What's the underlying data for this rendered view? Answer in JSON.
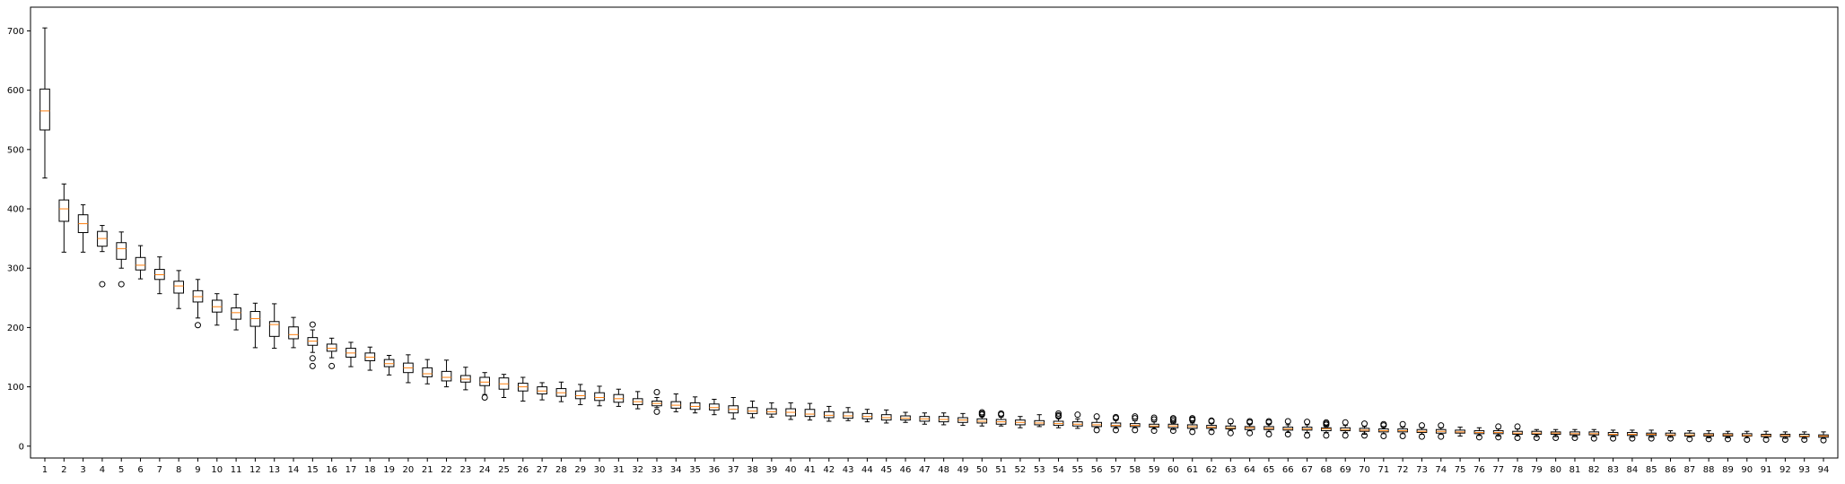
{
  "chart_data": {
    "type": "box",
    "title": "",
    "xlabel": "",
    "ylabel": "",
    "ylim": [
      -20,
      740
    ],
    "yticks": [
      0,
      100,
      200,
      300,
      400,
      500,
      600,
      700
    ],
    "grid": false,
    "colors": {
      "box": "#000000",
      "median": "#ff7f0e",
      "flier": "#000000",
      "background": "#ffffff"
    },
    "categories": [
      "1",
      "2",
      "3",
      "4",
      "5",
      "6",
      "7",
      "8",
      "9",
      "10",
      "11",
      "12",
      "13",
      "14",
      "15",
      "16",
      "17",
      "18",
      "19",
      "20",
      "21",
      "22",
      "23",
      "24",
      "25",
      "26",
      "27",
      "28",
      "29",
      "30",
      "31",
      "32",
      "33",
      "34",
      "35",
      "36",
      "37",
      "38",
      "39",
      "40",
      "41",
      "42",
      "43",
      "44",
      "45",
      "46",
      "47",
      "48",
      "49",
      "50",
      "51",
      "52",
      "53",
      "54",
      "55",
      "56",
      "57",
      "58",
      "59",
      "60",
      "61",
      "62",
      "63",
      "64",
      "65",
      "66",
      "67",
      "68",
      "69",
      "70",
      "71",
      "72",
      "73",
      "74",
      "75",
      "76",
      "77",
      "78",
      "79",
      "80",
      "81",
      "82",
      "83",
      "84",
      "85",
      "86",
      "87",
      "88",
      "89",
      "90",
      "91",
      "92",
      "93",
      "94"
    ],
    "boxes": [
      {
        "min": 452,
        "q1": 533,
        "median": 565,
        "q3": 602,
        "max": 705,
        "fliers": []
      },
      {
        "min": 327,
        "q1": 379,
        "median": 400,
        "q3": 415,
        "max": 442,
        "fliers": []
      },
      {
        "min": 327,
        "q1": 360,
        "median": 375,
        "q3": 390,
        "max": 407,
        "fliers": []
      },
      {
        "min": 328,
        "q1": 337,
        "median": 350,
        "q3": 362,
        "max": 372,
        "fliers": [
          273
        ]
      },
      {
        "min": 300,
        "q1": 315,
        "median": 333,
        "q3": 343,
        "max": 361,
        "fliers": [
          273
        ]
      },
      {
        "min": 282,
        "q1": 297,
        "median": 305,
        "q3": 318,
        "max": 338,
        "fliers": []
      },
      {
        "min": 257,
        "q1": 281,
        "median": 289,
        "q3": 298,
        "max": 319,
        "fliers": []
      },
      {
        "min": 232,
        "q1": 258,
        "median": 270,
        "q3": 278,
        "max": 296,
        "fliers": []
      },
      {
        "min": 216,
        "q1": 243,
        "median": 252,
        "q3": 262,
        "max": 281,
        "fliers": [
          204
        ]
      },
      {
        "min": 204,
        "q1": 226,
        "median": 235,
        "q3": 246,
        "max": 257,
        "fliers": []
      },
      {
        "min": 196,
        "q1": 214,
        "median": 225,
        "q3": 233,
        "max": 256,
        "fliers": []
      },
      {
        "min": 166,
        "q1": 202,
        "median": 215,
        "q3": 227,
        "max": 241,
        "fliers": []
      },
      {
        "min": 165,
        "q1": 185,
        "median": 205,
        "q3": 210,
        "max": 240,
        "fliers": []
      },
      {
        "min": 166,
        "q1": 181,
        "median": 188,
        "q3": 201,
        "max": 217,
        "fliers": []
      },
      {
        "min": 158,
        "q1": 170,
        "median": 177,
        "q3": 183,
        "max": 196,
        "fliers": [
          205,
          148,
          135
        ]
      },
      {
        "min": 149,
        "q1": 160,
        "median": 165,
        "q3": 172,
        "max": 182,
        "fliers": [
          135
        ]
      },
      {
        "min": 134,
        "q1": 150,
        "median": 157,
        "q3": 165,
        "max": 175,
        "fliers": []
      },
      {
        "min": 128,
        "q1": 144,
        "median": 150,
        "q3": 157,
        "max": 167,
        "fliers": []
      },
      {
        "min": 120,
        "q1": 134,
        "median": 139,
        "q3": 146,
        "max": 153,
        "fliers": []
      },
      {
        "min": 107,
        "q1": 124,
        "median": 132,
        "q3": 140,
        "max": 154,
        "fliers": []
      },
      {
        "min": 105,
        "q1": 117,
        "median": 122,
        "q3": 132,
        "max": 146,
        "fliers": []
      },
      {
        "min": 100,
        "q1": 110,
        "median": 116,
        "q3": 126,
        "max": 145,
        "fliers": []
      },
      {
        "min": 95,
        "q1": 108,
        "median": 113,
        "q3": 119,
        "max": 133,
        "fliers": []
      },
      {
        "min": 87,
        "q1": 102,
        "median": 108,
        "q3": 116,
        "max": 124,
        "fliers": [
          82
        ]
      },
      {
        "min": 82,
        "q1": 96,
        "median": 105,
        "q3": 115,
        "max": 121,
        "fliers": []
      },
      {
        "min": 76,
        "q1": 93,
        "median": 100,
        "q3": 106,
        "max": 116,
        "fliers": []
      },
      {
        "min": 78,
        "q1": 88,
        "median": 93,
        "q3": 100,
        "max": 107,
        "fliers": []
      },
      {
        "min": 75,
        "q1": 84,
        "median": 90,
        "q3": 97,
        "max": 108,
        "fliers": []
      },
      {
        "min": 70,
        "q1": 80,
        "median": 85,
        "q3": 93,
        "max": 104,
        "fliers": []
      },
      {
        "min": 68,
        "q1": 77,
        "median": 82,
        "q3": 90,
        "max": 101,
        "fliers": []
      },
      {
        "min": 67,
        "q1": 74,
        "median": 80,
        "q3": 87,
        "max": 96,
        "fliers": []
      },
      {
        "min": 63,
        "q1": 70,
        "median": 75,
        "q3": 80,
        "max": 92,
        "fliers": []
      },
      {
        "min": 65,
        "q1": 68,
        "median": 72,
        "q3": 76,
        "max": 82,
        "fliers": [
          91,
          58
        ]
      },
      {
        "min": 58,
        "q1": 64,
        "median": 69,
        "q3": 75,
        "max": 88,
        "fliers": []
      },
      {
        "min": 56,
        "q1": 62,
        "median": 67,
        "q3": 73,
        "max": 83,
        "fliers": []
      },
      {
        "min": 53,
        "q1": 61,
        "median": 65,
        "q3": 71,
        "max": 79,
        "fliers": []
      },
      {
        "min": 46,
        "q1": 56,
        "median": 62,
        "q3": 68,
        "max": 82,
        "fliers": []
      },
      {
        "min": 48,
        "q1": 55,
        "median": 59,
        "q3": 65,
        "max": 76,
        "fliers": []
      },
      {
        "min": 49,
        "q1": 54,
        "median": 58,
        "q3": 63,
        "max": 73,
        "fliers": []
      },
      {
        "min": 45,
        "q1": 51,
        "median": 57,
        "q3": 63,
        "max": 73,
        "fliers": []
      },
      {
        "min": 44,
        "q1": 50,
        "median": 54,
        "q3": 62,
        "max": 72,
        "fliers": []
      },
      {
        "min": 42,
        "q1": 48,
        "median": 52,
        "q3": 58,
        "max": 67,
        "fliers": []
      },
      {
        "min": 43,
        "q1": 47,
        "median": 51,
        "q3": 57,
        "max": 65,
        "fliers": []
      },
      {
        "min": 41,
        "q1": 46,
        "median": 50,
        "q3": 55,
        "max": 62,
        "fliers": []
      },
      {
        "min": 39,
        "q1": 44,
        "median": 48,
        "q3": 53,
        "max": 61,
        "fliers": []
      },
      {
        "min": 40,
        "q1": 44,
        "median": 47,
        "q3": 51,
        "max": 57,
        "fliers": []
      },
      {
        "min": 37,
        "q1": 42,
        "median": 46,
        "q3": 50,
        "max": 56,
        "fliers": []
      },
      {
        "min": 36,
        "q1": 41,
        "median": 45,
        "q3": 50,
        "max": 56,
        "fliers": []
      },
      {
        "min": 35,
        "q1": 40,
        "median": 44,
        "q3": 48,
        "max": 55,
        "fliers": []
      },
      {
        "min": 34,
        "q1": 39,
        "median": 42,
        "q3": 46,
        "max": 50,
        "fliers": [
          55,
          57,
          53
        ]
      },
      {
        "min": 34,
        "q1": 37,
        "median": 41,
        "q3": 45,
        "max": 49,
        "fliers": [
          55,
          53
        ]
      },
      {
        "min": 31,
        "q1": 36,
        "median": 40,
        "q3": 44,
        "max": 50,
        "fliers": []
      },
      {
        "min": 33,
        "q1": 36,
        "median": 39,
        "q3": 43,
        "max": 53,
        "fliers": []
      },
      {
        "min": 31,
        "q1": 35,
        "median": 38,
        "q3": 42,
        "max": 47,
        "fliers": [
          55,
          52,
          50
        ]
      },
      {
        "min": 30,
        "q1": 34,
        "median": 37,
        "q3": 41,
        "max": 46,
        "fliers": [
          53
        ]
      },
      {
        "min": 31,
        "q1": 33,
        "median": 36,
        "q3": 40,
        "max": 46,
        "fliers": [
          50,
          27
        ]
      },
      {
        "min": 30,
        "q1": 33,
        "median": 35,
        "q3": 39,
        "max": 44,
        "fliers": [
          49,
          47,
          27
        ]
      },
      {
        "min": 31,
        "q1": 33,
        "median": 35,
        "q3": 38,
        "max": 43,
        "fliers": [
          50,
          47,
          27
        ]
      },
      {
        "min": 29,
        "q1": 32,
        "median": 34,
        "q3": 37,
        "max": 41,
        "fliers": [
          48,
          45,
          26
        ]
      },
      {
        "min": 28,
        "q1": 31,
        "median": 34,
        "q3": 37,
        "max": 40,
        "fliers": [
          47,
          45,
          42,
          26
        ]
      },
      {
        "min": 28,
        "q1": 30,
        "median": 33,
        "q3": 36,
        "max": 39,
        "fliers": [
          47,
          45,
          44,
          24
        ]
      },
      {
        "min": 27,
        "q1": 30,
        "median": 32,
        "q3": 35,
        "max": 38,
        "fliers": [
          43,
          42,
          24
        ]
      },
      {
        "min": 27,
        "q1": 29,
        "median": 31,
        "q3": 34,
        "max": 38,
        "fliers": [
          42,
          22
        ]
      },
      {
        "min": 26,
        "q1": 28,
        "median": 31,
        "q3": 33,
        "max": 37,
        "fliers": [
          42,
          40,
          22
        ]
      },
      {
        "min": 25,
        "q1": 28,
        "median": 30,
        "q3": 33,
        "max": 37,
        "fliers": [
          42,
          40,
          20
        ]
      },
      {
        "min": 23,
        "q1": 27,
        "median": 29,
        "q3": 32,
        "max": 36,
        "fliers": [
          42,
          20
        ]
      },
      {
        "min": 23,
        "q1": 27,
        "median": 29,
        "q3": 32,
        "max": 36,
        "fliers": [
          41,
          18
        ]
      },
      {
        "min": 23,
        "q1": 26,
        "median": 29,
        "q3": 31,
        "max": 35,
        "fliers": [
          40,
          38,
          36,
          18
        ]
      },
      {
        "min": 23,
        "q1": 26,
        "median": 28,
        "q3": 31,
        "max": 35,
        "fliers": [
          40,
          18
        ]
      },
      {
        "min": 20,
        "q1": 25,
        "median": 27,
        "q3": 30,
        "max": 33,
        "fliers": [
          38,
          18
        ]
      },
      {
        "min": 21,
        "q1": 24,
        "median": 26,
        "q3": 29,
        "max": 33,
        "fliers": [
          37,
          35,
          17
        ]
      },
      {
        "min": 21,
        "q1": 24,
        "median": 26,
        "q3": 29,
        "max": 32,
        "fliers": [
          37,
          17
        ]
      },
      {
        "min": 20,
        "q1": 23,
        "median": 25,
        "q3": 28,
        "max": 31,
        "fliers": [
          35,
          16
        ]
      },
      {
        "min": 20,
        "q1": 22,
        "median": 25,
        "q3": 28,
        "max": 31,
        "fliers": [
          35,
          16
        ]
      },
      {
        "min": 17,
        "q1": 22,
        "median": 24,
        "q3": 27,
        "max": 32,
        "fliers": []
      },
      {
        "min": 18,
        "q1": 21,
        "median": 23,
        "q3": 26,
        "max": 31,
        "fliers": [
          15
        ]
      },
      {
        "min": 17,
        "q1": 21,
        "median": 23,
        "q3": 26,
        "max": 29,
        "fliers": [
          33,
          15
        ]
      },
      {
        "min": 17,
        "q1": 20,
        "median": 22,
        "q3": 25,
        "max": 29,
        "fliers": [
          33,
          14
        ]
      },
      {
        "min": 16,
        "q1": 20,
        "median": 22,
        "q3": 25,
        "max": 28,
        "fliers": [
          14
        ]
      },
      {
        "min": 16,
        "q1": 20,
        "median": 22,
        "q3": 24,
        "max": 28,
        "fliers": [
          14
        ]
      },
      {
        "min": 16,
        "q1": 19,
        "median": 21,
        "q3": 24,
        "max": 28,
        "fliers": [
          14
        ]
      },
      {
        "min": 16,
        "q1": 19,
        "median": 21,
        "q3": 24,
        "max": 28,
        "fliers": [
          13
        ]
      },
      {
        "min": 16,
        "q1": 18,
        "median": 20,
        "q3": 23,
        "max": 27,
        "fliers": [
          13
        ]
      },
      {
        "min": 15,
        "q1": 18,
        "median": 20,
        "q3": 23,
        "max": 27,
        "fliers": [
          13
        ]
      },
      {
        "min": 15,
        "q1": 18,
        "median": 20,
        "q3": 22,
        "max": 27,
        "fliers": [
          13
        ]
      },
      {
        "min": 15,
        "q1": 18,
        "median": 19,
        "q3": 22,
        "max": 26,
        "fliers": [
          13
        ]
      },
      {
        "min": 15,
        "q1": 17,
        "median": 19,
        "q3": 22,
        "max": 26,
        "fliers": [
          12
        ]
      },
      {
        "min": 14,
        "q1": 17,
        "median": 19,
        "q3": 21,
        "max": 26,
        "fliers": [
          12
        ]
      },
      {
        "min": 14,
        "q1": 17,
        "median": 19,
        "q3": 21,
        "max": 25,
        "fliers": [
          12
        ]
      },
      {
        "min": 14,
        "q1": 17,
        "median": 18,
        "q3": 21,
        "max": 25,
        "fliers": [
          11
        ]
      },
      {
        "min": 14,
        "q1": 16,
        "median": 18,
        "q3": 20,
        "max": 25,
        "fliers": [
          11
        ]
      },
      {
        "min": 13,
        "q1": 16,
        "median": 18,
        "q3": 20,
        "max": 24,
        "fliers": [
          11
        ]
      },
      {
        "min": 13,
        "q1": 16,
        "median": 17,
        "q3": 20,
        "max": 24,
        "fliers": [
          11
        ]
      },
      {
        "min": 13,
        "q1": 15,
        "median": 17,
        "q3": 19,
        "max": 24,
        "fliers": [
          10
        ]
      }
    ]
  }
}
